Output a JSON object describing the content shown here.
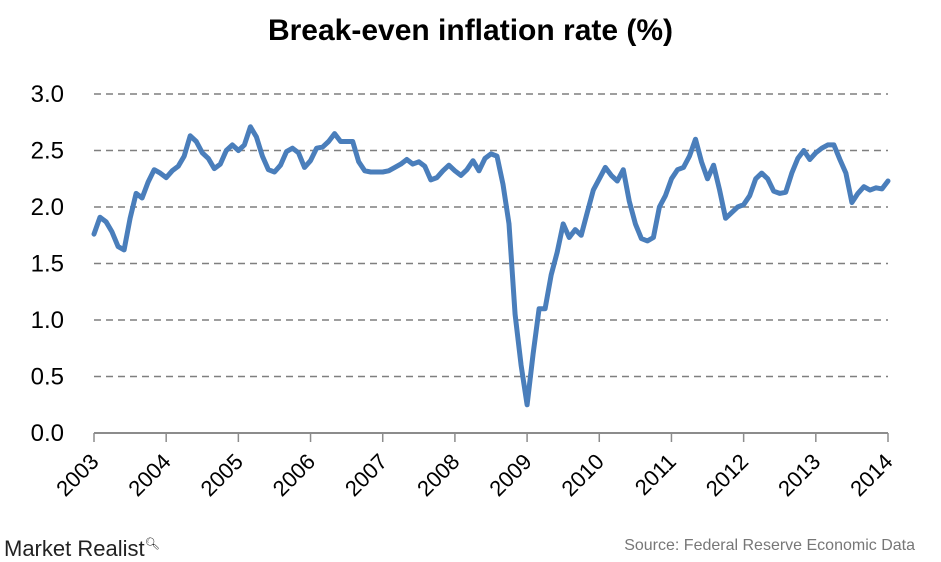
{
  "chart_data": {
    "type": "line",
    "title": "Break-even inflation rate (%)",
    "xlabel": "",
    "ylabel": "",
    "ylim": [
      0,
      3.0
    ],
    "yticks": [
      "0.0",
      "0.5",
      "1.0",
      "1.5",
      "2.0",
      "2.5",
      "3.0"
    ],
    "xticks": [
      "2003",
      "2004",
      "2005",
      "2006",
      "2007",
      "2008",
      "2009",
      "2010",
      "2011",
      "2012",
      "2013",
      "2014"
    ],
    "grid": "horizontal dashed",
    "line_color": "#4a7ebb",
    "x": [
      "2003-01",
      "2003-02",
      "2003-03",
      "2003-04",
      "2003-05",
      "2003-06",
      "2003-07",
      "2003-08",
      "2003-09",
      "2003-10",
      "2003-11",
      "2003-12",
      "2004-01",
      "2004-02",
      "2004-03",
      "2004-04",
      "2004-05",
      "2004-06",
      "2004-07",
      "2004-08",
      "2004-09",
      "2004-10",
      "2004-11",
      "2004-12",
      "2005-01",
      "2005-02",
      "2005-03",
      "2005-04",
      "2005-05",
      "2005-06",
      "2005-07",
      "2005-08",
      "2005-09",
      "2005-10",
      "2005-11",
      "2005-12",
      "2006-01",
      "2006-02",
      "2006-03",
      "2006-04",
      "2006-05",
      "2006-06",
      "2006-07",
      "2006-08",
      "2006-09",
      "2006-10",
      "2006-11",
      "2006-12",
      "2007-01",
      "2007-02",
      "2007-03",
      "2007-04",
      "2007-05",
      "2007-06",
      "2007-07",
      "2007-08",
      "2007-09",
      "2007-10",
      "2007-11",
      "2007-12",
      "2008-01",
      "2008-02",
      "2008-03",
      "2008-04",
      "2008-05",
      "2008-06",
      "2008-07",
      "2008-08",
      "2008-09",
      "2008-10",
      "2008-11",
      "2008-12",
      "2009-01",
      "2009-02",
      "2009-03",
      "2009-04",
      "2009-05",
      "2009-06",
      "2009-07",
      "2009-08",
      "2009-09",
      "2009-10",
      "2009-11",
      "2009-12",
      "2010-01",
      "2010-02",
      "2010-03",
      "2010-04",
      "2010-05",
      "2010-06",
      "2010-07",
      "2010-08",
      "2010-09",
      "2010-10",
      "2010-11",
      "2010-12",
      "2011-01",
      "2011-02",
      "2011-03",
      "2011-04",
      "2011-05",
      "2011-06",
      "2011-07",
      "2011-08",
      "2011-09",
      "2011-10",
      "2011-11",
      "2011-12",
      "2012-01",
      "2012-02",
      "2012-03",
      "2012-04",
      "2012-05",
      "2012-06",
      "2012-07",
      "2012-08",
      "2012-09",
      "2012-10",
      "2012-11",
      "2012-12",
      "2013-01",
      "2013-02",
      "2013-03",
      "2013-04",
      "2013-05",
      "2013-06",
      "2013-07",
      "2013-08",
      "2013-09",
      "2013-10",
      "2013-11",
      "2013-12",
      "2014-01"
    ],
    "values": [
      1.76,
      1.91,
      1.87,
      1.78,
      1.65,
      1.62,
      1.9,
      2.12,
      2.08,
      2.22,
      2.33,
      2.3,
      2.26,
      2.32,
      2.36,
      2.45,
      2.63,
      2.58,
      2.48,
      2.43,
      2.34,
      2.38,
      2.5,
      2.55,
      2.5,
      2.55,
      2.71,
      2.62,
      2.45,
      2.33,
      2.31,
      2.37,
      2.49,
      2.52,
      2.48,
      2.35,
      2.41,
      2.52,
      2.53,
      2.58,
      2.65,
      2.58,
      2.58,
      2.58,
      2.4,
      2.32,
      2.31,
      2.31,
      2.31,
      2.32,
      2.35,
      2.38,
      2.42,
      2.38,
      2.4,
      2.36,
      2.24,
      2.26,
      2.32,
      2.37,
      2.32,
      2.28,
      2.33,
      2.41,
      2.32,
      2.43,
      2.47,
      2.45,
      2.2,
      1.85,
      1.05,
      0.6,
      0.25,
      0.7,
      1.1,
      1.1,
      1.4,
      1.6,
      1.85,
      1.73,
      1.8,
      1.75,
      1.95,
      2.15,
      2.25,
      2.35,
      2.28,
      2.23,
      2.33,
      2.05,
      1.85,
      1.72,
      1.7,
      1.73,
      2.0,
      2.1,
      2.25,
      2.33,
      2.35,
      2.45,
      2.6,
      2.4,
      2.25,
      2.37,
      2.15,
      1.9,
      1.95,
      2.0,
      2.02,
      2.1,
      2.25,
      2.3,
      2.25,
      2.14,
      2.12,
      2.13,
      2.3,
      2.43,
      2.5,
      2.42,
      2.48,
      2.52,
      2.55,
      2.55,
      2.42,
      2.3,
      2.04,
      2.12,
      2.18,
      2.15,
      2.17,
      2.16,
      2.23
    ]
  },
  "footer": {
    "logo_text": "Market Realist",
    "source": "Source: Federal Reserve Economic Data"
  }
}
